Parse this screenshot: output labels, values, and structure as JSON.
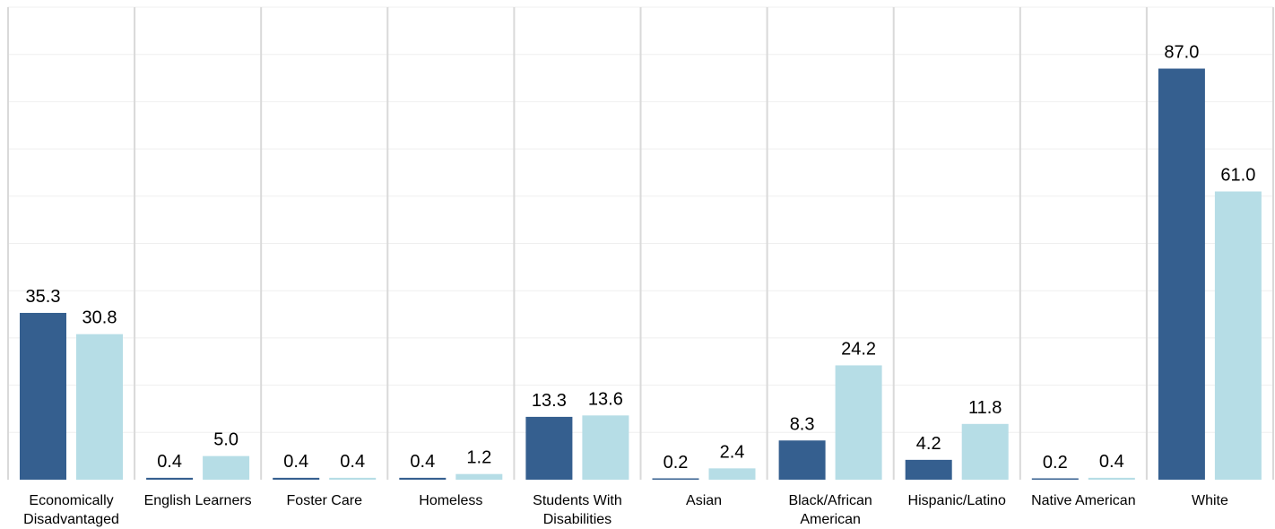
{
  "chart_data": {
    "type": "bar",
    "title": "",
    "xlabel": "",
    "ylabel": "",
    "ylim": [
      0,
      100
    ],
    "grid": true,
    "legend": "none",
    "categories": [
      [
        "Economically",
        "Disadvantaged"
      ],
      [
        "English Learners"
      ],
      [
        "Foster Care"
      ],
      [
        "Homeless"
      ],
      [
        "Students With",
        "Disabilities"
      ],
      [
        "Asian"
      ],
      [
        "Black/African",
        "American"
      ],
      [
        "Hispanic/Latino"
      ],
      [
        "Native American"
      ],
      [
        "White"
      ]
    ],
    "series": [
      {
        "color": "#355f8f",
        "values": [
          35.3,
          0.4,
          0.4,
          0.4,
          13.3,
          0.2,
          8.3,
          4.2,
          0.2,
          87.0
        ],
        "labels": [
          "35.3",
          "0.4",
          "0.4",
          "0.4",
          "13.3",
          "0.2",
          "8.3",
          "4.2",
          "0.2",
          "87.0"
        ]
      },
      {
        "color": "#b6dde6",
        "values": [
          30.8,
          5.0,
          0.4,
          1.2,
          13.6,
          2.4,
          24.2,
          11.8,
          0.4,
          61.0
        ],
        "labels": [
          "30.8",
          "5.0",
          "0.4",
          "1.2",
          "13.6",
          "2.4",
          "24.2",
          "11.8",
          "0.4",
          "61.0"
        ]
      }
    ]
  }
}
